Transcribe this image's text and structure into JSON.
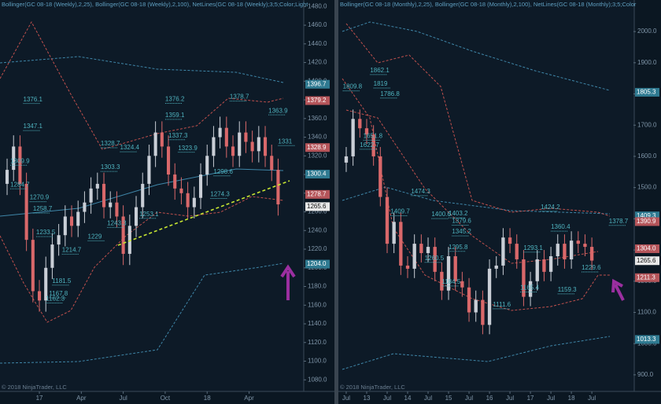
{
  "chart_data": [
    {
      "type": "candlestick",
      "title": "Bollinger(GC 08-18 (Weekly),2,25), Bollinger(GC 08-18 (Weekly),2,100), NetLines(GC 08-18 (Weekly);3;5;Color;Light",
      "footer": "© 2018 NinjaTrader, LLC",
      "x": [
        -10,
        -8,
        -6,
        -4,
        -2,
        0,
        2,
        4,
        6,
        8,
        10,
        12,
        14,
        16,
        18,
        20,
        22,
        24,
        26,
        28,
        30,
        32,
        34,
        36,
        38,
        40,
        42,
        44,
        46,
        48,
        50,
        52,
        54,
        56,
        58,
        60,
        62,
        64,
        66,
        68,
        70,
        72,
        74
      ],
      "open": [
        1290,
        1305,
        1330,
        1290,
        1230,
        1175,
        1165,
        1200,
        1225,
        1235,
        1255,
        1245,
        1260,
        1270,
        1285,
        1290,
        1265,
        1270,
        1255,
        1215,
        1245,
        1265,
        1290,
        1320,
        1345,
        1330,
        1300,
        1285,
        1280,
        1265,
        1275,
        1300,
        1320,
        1340,
        1350,
        1330,
        1320,
        1345,
        1335,
        1325,
        1340,
        1320,
        1305
      ],
      "high": [
        1317,
        1342,
        1342,
        1302,
        1242,
        1187,
        1212,
        1237,
        1247,
        1267,
        1267,
        1272,
        1282,
        1297,
        1302,
        1302,
        1282,
        1282,
        1267,
        1257,
        1277,
        1302,
        1332,
        1357,
        1357,
        1342,
        1312,
        1297,
        1292,
        1287,
        1312,
        1332,
        1352,
        1362,
        1362,
        1342,
        1357,
        1357,
        1347,
        1352,
        1352,
        1332,
        1317
      ],
      "low": [
        1278,
        1293,
        1278,
        1218,
        1163,
        1153,
        1153,
        1188,
        1213,
        1223,
        1233,
        1233,
        1248,
        1258,
        1273,
        1253,
        1253,
        1243,
        1203,
        1203,
        1233,
        1253,
        1278,
        1308,
        1318,
        1288,
        1273,
        1268,
        1253,
        1253,
        1263,
        1288,
        1308,
        1328,
        1318,
        1308,
        1308,
        1323,
        1313,
        1313,
        1308,
        1293,
        1256
      ],
      "close": [
        1305,
        1330,
        1290,
        1230,
        1175,
        1165,
        1200,
        1225,
        1235,
        1255,
        1245,
        1260,
        1270,
        1285,
        1290,
        1265,
        1270,
        1255,
        1215,
        1245,
        1265,
        1290,
        1320,
        1345,
        1330,
        1300,
        1285,
        1280,
        1265,
        1275,
        1300,
        1320,
        1340,
        1350,
        1330,
        1320,
        1345,
        1335,
        1325,
        1340,
        1320,
        1305,
        1268
      ],
      "up_color": "#c9ced6",
      "down_color": "#d9686a",
      "xlim": [
        -12.2,
        81.7
      ],
      "xticks": [
        {
          "value": 0,
          "label": "17"
        },
        {
          "value": 13,
          "label": "Apr"
        },
        {
          "value": 26,
          "label": "Jul"
        },
        {
          "value": 39,
          "label": "Oct"
        },
        {
          "value": 52,
          "label": "18"
        },
        {
          "value": 65,
          "label": "Apr"
        }
      ],
      "ylim": [
        1076,
        1487
      ],
      "yticks": [
        {
          "value": 1080,
          "label": "1080.0"
        },
        {
          "value": 1100,
          "label": "1100.0"
        },
        {
          "value": 1120,
          "label": "1120.0"
        },
        {
          "value": 1140,
          "label": "1140.0"
        },
        {
          "value": 1160,
          "label": "1160.0"
        },
        {
          "value": 1180,
          "label": "1180.0"
        },
        {
          "value": 1200,
          "label": "1200.0"
        },
        {
          "value": 1220,
          "label": "1220.0"
        },
        {
          "value": 1240,
          "label": "1240.0"
        },
        {
          "value": 1260,
          "label": "1260.0"
        },
        {
          "value": 1280,
          "label": "1280.0"
        },
        {
          "value": 1300,
          "label": "1300.0"
        },
        {
          "value": 1320,
          "label": "1320.0"
        },
        {
          "value": 1340,
          "label": "1340.0"
        },
        {
          "value": 1360,
          "label": "1360.0"
        },
        {
          "value": 1380,
          "label": "1380.0"
        },
        {
          "value": 1400,
          "label": "1400.0"
        },
        {
          "value": 1420,
          "label": "1420.0"
        },
        {
          "value": 1440,
          "label": "1440.0"
        },
        {
          "value": 1460,
          "label": "1460.0"
        },
        {
          "value": 1480,
          "label": "1480.0"
        }
      ],
      "annotations": [
        {
          "x": -5,
          "value": 1376.1
        },
        {
          "x": -5,
          "value": 1347.1
        },
        {
          "x": -9,
          "value": 1309.9
        },
        {
          "x": -9,
          "value": 1284.7
        },
        {
          "x": -3,
          "value": 1270.9
        },
        {
          "x": -2,
          "value": 1258.7
        },
        {
          "x": -1,
          "value": 1233.5
        },
        {
          "x": 7,
          "value": 1214.7
        },
        {
          "x": 15,
          "value": 1229
        },
        {
          "x": 4,
          "value": 1181.5
        },
        {
          "x": 3,
          "value": 1167.8
        },
        {
          "x": 2,
          "value": 1162.3
        },
        {
          "x": 19,
          "value": 1328.7
        },
        {
          "x": 25,
          "value": 1324.4
        },
        {
          "x": 19,
          "value": 1303.3
        },
        {
          "x": 39,
          "value": 1376.2
        },
        {
          "x": 39,
          "value": 1359.1
        },
        {
          "x": 40,
          "value": 1337.3
        },
        {
          "x": 43,
          "value": 1323.9
        },
        {
          "x": 59,
          "value": 1378.7
        },
        {
          "x": 71,
          "value": 1363.9
        },
        {
          "x": 74,
          "value": 1331
        },
        {
          "x": 53,
          "value": 1274.3
        },
        {
          "x": 31,
          "value": 1253.1
        },
        {
          "x": 21,
          "value": 1243.3
        },
        {
          "x": 54,
          "value": 1298.6
        }
      ],
      "price_markers": [
        {
          "value": 1396.7,
          "label": "1396.7",
          "color": "#2f7a91"
        },
        {
          "value": 1379.2,
          "label": "1379.2",
          "color": "#b5555a"
        },
        {
          "value": 1328.9,
          "label": "1328.9",
          "color": "#b5555a"
        },
        {
          "value": 1300.4,
          "label": "1300.4",
          "color": "#2f7a91"
        },
        {
          "value": 1278.7,
          "label": "1278.7",
          "color": "#b5555a"
        },
        {
          "value": 1265.6,
          "label": "1265.6",
          "color": "#e8e8e8"
        },
        {
          "value": 1204.0,
          "label": "1204.0",
          "color": "#2f7a91"
        }
      ]
    },
    {
      "type": "candlestick",
      "title": "Bollinger(GC 08-18 (Monthly),2,25), Bollinger(GC 08-18 (Monthly),2,100), NetLines(GC 08-18 (Monthly);3;5;Color",
      "footer": "© 2018 NinjaTrader, LLC",
      "x": [
        -6,
        -4,
        -2,
        0,
        2,
        4,
        6,
        8,
        10,
        12,
        14,
        16,
        18,
        20,
        22,
        24,
        26,
        28,
        30,
        32,
        34,
        36,
        38,
        40,
        42,
        44,
        46,
        48,
        50,
        52,
        54,
        56,
        58,
        60,
        62,
        64,
        66
      ],
      "open": [
        1580,
        1600,
        1720,
        1690,
        1670,
        1600,
        1470,
        1320,
        1390,
        1250,
        1240,
        1320,
        1290,
        1310,
        1230,
        1170,
        1280,
        1200,
        1180,
        1100,
        1140,
        1060,
        1240,
        1250,
        1340,
        1320,
        1270,
        1150,
        1200,
        1270,
        1230,
        1280,
        1320,
        1270,
        1330,
        1320,
        1310
      ],
      "high": [
        1630,
        1750,
        1750,
        1720,
        1700,
        1630,
        1500,
        1420,
        1420,
        1280,
        1350,
        1350,
        1340,
        1340,
        1260,
        1310,
        1310,
        1230,
        1210,
        1170,
        1170,
        1270,
        1280,
        1370,
        1370,
        1350,
        1300,
        1230,
        1300,
        1300,
        1310,
        1350,
        1350,
        1360,
        1360,
        1350,
        1340
      ],
      "low": [
        1550,
        1570,
        1660,
        1640,
        1570,
        1440,
        1290,
        1290,
        1220,
        1210,
        1210,
        1260,
        1260,
        1200,
        1140,
        1140,
        1170,
        1150,
        1070,
        1070,
        1030,
        1030,
        1210,
        1220,
        1290,
        1240,
        1120,
        1120,
        1170,
        1200,
        1200,
        1250,
        1240,
        1240,
        1290,
        1280,
        1236
      ],
      "close": [
        1600,
        1720,
        1690,
        1670,
        1600,
        1470,
        1320,
        1390,
        1250,
        1240,
        1320,
        1290,
        1310,
        1230,
        1170,
        1280,
        1200,
        1180,
        1100,
        1140,
        1060,
        1240,
        1250,
        1340,
        1320,
        1270,
        1150,
        1200,
        1270,
        1230,
        1280,
        1320,
        1270,
        1330,
        1320,
        1310,
        1266
      ],
      "up_color": "#c9ced6",
      "down_color": "#d9686a",
      "xlim": [
        -8.3,
        78.2
      ],
      "xticks": [
        {
          "value": -6,
          "label": "Jul"
        },
        {
          "value": 0,
          "label": "13"
        },
        {
          "value": 6,
          "label": "Jul"
        },
        {
          "value": 12,
          "label": "14"
        },
        {
          "value": 18,
          "label": "Jul"
        },
        {
          "value": 24,
          "label": "15"
        },
        {
          "value": 30,
          "label": "Jul"
        },
        {
          "value": 36,
          "label": "16"
        },
        {
          "value": 42,
          "label": "Jul"
        },
        {
          "value": 48,
          "label": "17"
        },
        {
          "value": 54,
          "label": "Jul"
        },
        {
          "value": 60,
          "label": "18"
        },
        {
          "value": 66,
          "label": "Jul"
        }
      ],
      "ylim": [
        872,
        2101
      ],
      "yticks": [
        {
          "value": 900,
          "label": "900.0"
        },
        {
          "value": 1000,
          "label": "1000.0"
        },
        {
          "value": 1100,
          "label": "1100.0"
        },
        {
          "value": 1200,
          "label": "1200.0"
        },
        {
          "value": 1300,
          "label": "1300.0"
        },
        {
          "value": 1400,
          "label": "1400.0"
        },
        {
          "value": 1500,
          "label": "1500.0"
        },
        {
          "value": 1600,
          "label": "1600.0"
        },
        {
          "value": 1700,
          "label": "1700.0"
        },
        {
          "value": 1800,
          "label": "1800.0"
        },
        {
          "value": 1900,
          "label": "1900.0"
        },
        {
          "value": 2000,
          "label": "2000.0"
        }
      ],
      "annotations": [
        {
          "x": 1,
          "value": 1862.1
        },
        {
          "x": 2,
          "value": 1819
        },
        {
          "x": 4,
          "value": 1786.8
        },
        {
          "x": -7,
          "value": 1809.8
        },
        {
          "x": -1,
          "value": 1651.8
        },
        {
          "x": -2,
          "value": 1622.7
        },
        {
          "x": 13,
          "value": 1474.3
        },
        {
          "x": 19,
          "value": 1400.6
        },
        {
          "x": 7,
          "value": 1409.7
        },
        {
          "x": 24,
          "value": 1403.2
        },
        {
          "x": 25,
          "value": 1379.6
        },
        {
          "x": 25,
          "value": 1345.2
        },
        {
          "x": 17,
          "value": 1260.5
        },
        {
          "x": 22,
          "value": 1184.5
        },
        {
          "x": 37,
          "value": 1111.6
        },
        {
          "x": 45,
          "value": 1165.4
        },
        {
          "x": 56,
          "value": 1159.3
        },
        {
          "x": 63,
          "value": 1229.6
        },
        {
          "x": 54,
          "value": 1360.4
        },
        {
          "x": 51,
          "value": 1424.2
        },
        {
          "x": 71,
          "value": 1378.7
        },
        {
          "x": 46,
          "value": 1293.1
        },
        {
          "x": 24,
          "value": 1295.8
        }
      ],
      "price_markers": [
        {
          "value": 1805.3,
          "label": "1805.3",
          "color": "#2f7a91"
        },
        {
          "value": 1409.3,
          "label": "1409.3",
          "color": "#2f7a91"
        },
        {
          "value": 1390.9,
          "label": "1390.9",
          "color": "#b5555a"
        },
        {
          "value": 1304.0,
          "label": "1304.0",
          "color": "#b5555a"
        },
        {
          "value": 1265.6,
          "label": "1265.6",
          "color": "#e8e8e8"
        },
        {
          "value": 1211.3,
          "label": "1211.3",
          "color": "#b5555a"
        },
        {
          "value": 1013.3,
          "label": "1013.3",
          "color": "#2f7a91"
        }
      ]
    }
  ]
}
